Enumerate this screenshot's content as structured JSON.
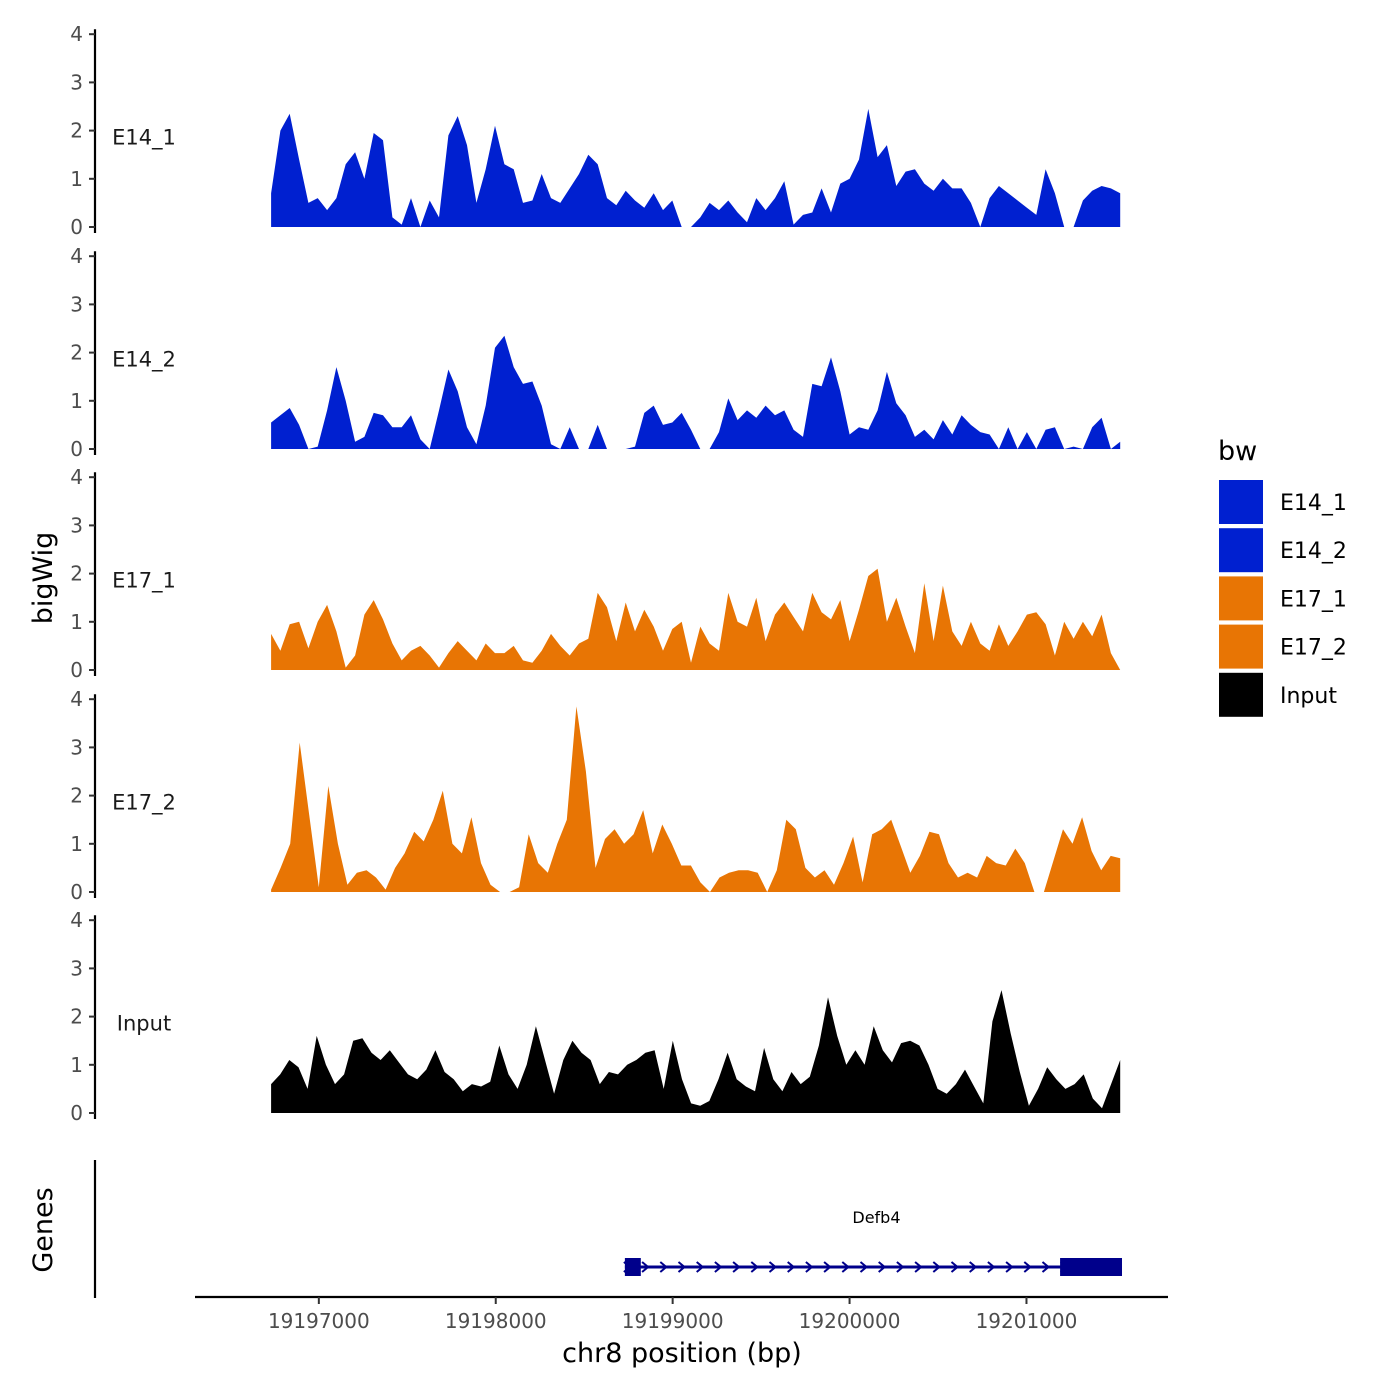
{
  "chart_data": {
    "type": "area",
    "chromosome": "chr8",
    "xlabel": "chr8 position (bp)",
    "ylabel": "bigWig",
    "gene_panel_label": "Genes",
    "xlim": [
      19196300,
      19201800
    ],
    "data_range": [
      19196730,
      19201530
    ],
    "x_ticks": [
      19197000,
      19198000,
      19199000,
      19200000,
      19201000
    ],
    "y_ticks": [
      0,
      1,
      2,
      3,
      4
    ],
    "ylim": [
      0,
      4
    ],
    "legend_title": "bw",
    "legend": [
      {
        "label": "E14_1",
        "color": "#0020D0"
      },
      {
        "label": "E14_2",
        "color": "#0020D0"
      },
      {
        "label": "E17_1",
        "color": "#E87504"
      },
      {
        "label": "E17_2",
        "color": "#E87504"
      },
      {
        "label": "Input",
        "color": "#000000"
      }
    ],
    "series": [
      {
        "name": "E14_1",
        "color": "#0020D0",
        "values": [
          0.7,
          2.0,
          2.35,
          1.4,
          0.5,
          0.6,
          0.35,
          0.6,
          1.3,
          1.55,
          1.0,
          1.95,
          1.8,
          0.2,
          0.05,
          0.6,
          0.0,
          0.55,
          0.2,
          1.9,
          2.3,
          1.7,
          0.5,
          1.2,
          2.1,
          1.3,
          1.2,
          0.5,
          0.55,
          1.1,
          0.6,
          0.5,
          0.8,
          1.1,
          1.5,
          1.3,
          0.6,
          0.45,
          0.75,
          0.55,
          0.4,
          0.7,
          0.35,
          0.55,
          0.0,
          0.0,
          0.2,
          0.5,
          0.35,
          0.55,
          0.3,
          0.1,
          0.6,
          0.35,
          0.6,
          0.95,
          0.05,
          0.25,
          0.3,
          0.8,
          0.3,
          0.9,
          1.0,
          1.4,
          2.45,
          1.45,
          1.7,
          0.85,
          1.15,
          1.2,
          0.9,
          0.75,
          1.0,
          0.8,
          0.8,
          0.5,
          0.0,
          0.6,
          0.85,
          0.7,
          0.55,
          0.4,
          0.25,
          1.2,
          0.7,
          0.0,
          0.0,
          0.55,
          0.75,
          0.85,
          0.8,
          0.7
        ]
      },
      {
        "name": "E14_2",
        "color": "#0020D0",
        "values": [
          0.55,
          0.7,
          0.85,
          0.5,
          0.0,
          0.05,
          0.8,
          1.7,
          1.0,
          0.15,
          0.25,
          0.75,
          0.7,
          0.45,
          0.45,
          0.7,
          0.2,
          0.0,
          0.8,
          1.65,
          1.2,
          0.45,
          0.1,
          0.9,
          2.1,
          2.35,
          1.7,
          1.35,
          1.4,
          0.9,
          0.1,
          0.0,
          0.45,
          0.0,
          0.0,
          0.5,
          0.0,
          0.0,
          0.0,
          0.05,
          0.75,
          0.9,
          0.5,
          0.55,
          0.75,
          0.4,
          0.0,
          0.0,
          0.35,
          1.05,
          0.6,
          0.8,
          0.65,
          0.9,
          0.7,
          0.8,
          0.4,
          0.25,
          1.35,
          1.3,
          1.9,
          1.2,
          0.3,
          0.45,
          0.4,
          0.8,
          1.6,
          0.95,
          0.7,
          0.25,
          0.4,
          0.2,
          0.6,
          0.3,
          0.7,
          0.5,
          0.35,
          0.3,
          0.0,
          0.45,
          0.0,
          0.35,
          0.0,
          0.4,
          0.45,
          0.0,
          0.05,
          0.0,
          0.45,
          0.65,
          0.0,
          0.15
        ]
      },
      {
        "name": "E17_1",
        "color": "#E87504",
        "values": [
          0.75,
          0.4,
          0.95,
          1.0,
          0.45,
          1.0,
          1.35,
          0.8,
          0.05,
          0.3,
          1.15,
          1.45,
          1.05,
          0.55,
          0.2,
          0.4,
          0.5,
          0.3,
          0.05,
          0.35,
          0.6,
          0.4,
          0.2,
          0.55,
          0.35,
          0.35,
          0.5,
          0.2,
          0.15,
          0.4,
          0.75,
          0.5,
          0.3,
          0.55,
          0.65,
          1.6,
          1.3,
          0.6,
          1.4,
          0.8,
          1.25,
          0.9,
          0.4,
          0.85,
          1.0,
          0.15,
          0.9,
          0.55,
          0.4,
          1.6,
          1.0,
          0.9,
          1.5,
          0.6,
          1.15,
          1.4,
          1.1,
          0.8,
          1.6,
          1.2,
          1.05,
          1.45,
          0.6,
          1.25,
          1.95,
          2.1,
          1.0,
          1.5,
          0.9,
          0.35,
          1.8,
          0.6,
          1.75,
          0.8,
          0.5,
          1.0,
          0.55,
          0.4,
          0.95,
          0.5,
          0.8,
          1.15,
          1.2,
          0.95,
          0.3,
          1.0,
          0.65,
          1.0,
          0.7,
          1.15,
          0.35,
          0.0
        ]
      },
      {
        "name": "E17_2",
        "color": "#E87504",
        "values": [
          0.05,
          0.5,
          1.0,
          3.1,
          1.6,
          0.1,
          2.2,
          1.0,
          0.15,
          0.4,
          0.45,
          0.3,
          0.05,
          0.5,
          0.8,
          1.25,
          1.05,
          1.5,
          2.1,
          1.0,
          0.8,
          1.55,
          0.6,
          0.15,
          0.0,
          0.0,
          0.1,
          1.2,
          0.6,
          0.4,
          1.0,
          1.5,
          3.85,
          2.5,
          0.5,
          1.1,
          1.3,
          1.0,
          1.2,
          1.7,
          0.8,
          1.4,
          1.0,
          0.55,
          0.55,
          0.2,
          0.0,
          0.3,
          0.4,
          0.45,
          0.45,
          0.4,
          0.0,
          0.45,
          1.5,
          1.3,
          0.5,
          0.3,
          0.45,
          0.15,
          0.6,
          1.15,
          0.2,
          1.2,
          1.3,
          1.5,
          0.95,
          0.4,
          0.75,
          1.25,
          1.2,
          0.6,
          0.3,
          0.4,
          0.3,
          0.75,
          0.6,
          0.55,
          0.9,
          0.6,
          0.0,
          0.0,
          0.65,
          1.3,
          1.0,
          1.55,
          0.85,
          0.45,
          0.75,
          0.7
        ]
      },
      {
        "name": "Input",
        "color": "#000000",
        "values": [
          0.6,
          0.8,
          1.1,
          0.95,
          0.5,
          1.6,
          1.0,
          0.6,
          0.8,
          1.5,
          1.55,
          1.25,
          1.1,
          1.3,
          1.05,
          0.8,
          0.7,
          0.9,
          1.3,
          0.85,
          0.7,
          0.45,
          0.6,
          0.55,
          0.65,
          1.4,
          0.8,
          0.5,
          1.0,
          1.8,
          1.1,
          0.4,
          1.1,
          1.5,
          1.25,
          1.1,
          0.6,
          0.85,
          0.8,
          1.0,
          1.1,
          1.25,
          1.3,
          0.5,
          1.5,
          0.7,
          0.2,
          0.15,
          0.25,
          0.7,
          1.25,
          0.7,
          0.55,
          0.45,
          1.35,
          0.7,
          0.45,
          0.85,
          0.6,
          0.75,
          1.4,
          2.4,
          1.6,
          1.0,
          1.3,
          1.0,
          1.8,
          1.3,
          1.05,
          1.45,
          1.5,
          1.4,
          1.0,
          0.5,
          0.4,
          0.6,
          0.9,
          0.55,
          0.2,
          1.9,
          2.55,
          1.65,
          0.85,
          0.15,
          0.5,
          0.95,
          0.7,
          0.5,
          0.6,
          0.8,
          0.3,
          0.1,
          0.6,
          1.1
        ]
      }
    ],
    "gene": {
      "name": "Defb4",
      "strand": "+",
      "start": 19198730,
      "end": 19201540,
      "exons": [
        [
          19198730,
          19198820
        ],
        [
          19201190,
          19201540
        ]
      ],
      "color": "#00008B"
    }
  }
}
